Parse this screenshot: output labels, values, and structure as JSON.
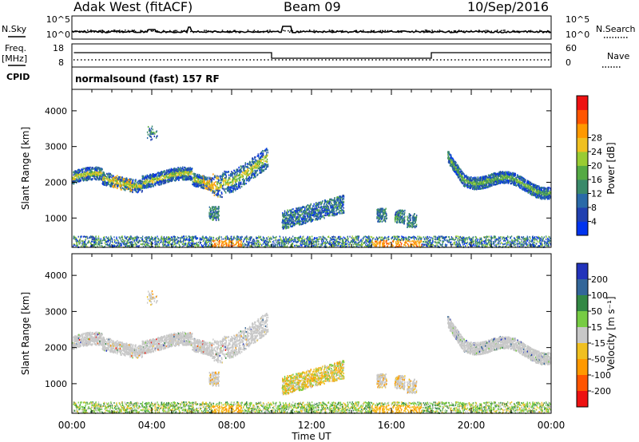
{
  "header": {
    "station": "Adak West (fitACF)",
    "beam": "Beam 09",
    "date": "10/Sep/2016"
  },
  "noise_panel": {
    "left_label": "N.Sky",
    "right_label": "N.Search",
    "y_ticks": [
      "10^5",
      "10^0"
    ]
  },
  "freq_panel": {
    "left_label_1": "Freq.",
    "left_label_2": "[MHz]",
    "left_ticks": [
      "18",
      "8"
    ],
    "right_label": "Nave",
    "right_ticks": [
      "60",
      "0"
    ],
    "cpid_label": "CPID",
    "cpid_text": "normalsound (fast) 157 RF"
  },
  "x_axis": {
    "label": "Time UT",
    "ticks": [
      "00:00",
      "04:00",
      "08:00",
      "12:00",
      "16:00",
      "20:00",
      "00:00"
    ]
  },
  "chart_data": [
    {
      "type": "heatmap",
      "panel": "power",
      "ylabel": "Slant Range [km]",
      "y_ticks": [
        "1000",
        "2000",
        "3000",
        "4000"
      ],
      "ylim": [
        180,
        4600
      ],
      "xlim_hours": [
        0,
        24
      ],
      "colorbar": {
        "label": "Power [dB]",
        "ticks": [
          "4",
          "8",
          "12",
          "16",
          "20",
          "24",
          "28"
        ],
        "colors": [
          "#0033ee",
          "#2040b0",
          "#2a6aa8",
          "#3a8a6a",
          "#55aa44",
          "#99cc33",
          "#f0c020",
          "#ff9900",
          "#ff5500",
          "#ee1111"
        ]
      },
      "echo_regions": [
        {
          "t_start": 0.0,
          "t_end": 9.8,
          "range_km": [
            1800,
            2900
          ],
          "level": "moderate to strong"
        },
        {
          "t_start": 10.5,
          "t_end": 13.5,
          "range_km": [
            800,
            1600
          ],
          "level": "weak to moderate"
        },
        {
          "t_start": 7.0,
          "t_end": 7.3,
          "range_km": [
            1000,
            1350
          ],
          "level": "moderate"
        },
        {
          "t_start": 15.0,
          "t_end": 17.3,
          "range_km": [
            900,
            1300
          ],
          "level": "weak"
        },
        {
          "t_start": 18.8,
          "t_end": 24.0,
          "range_km": [
            1700,
            2900
          ],
          "level": "moderate"
        },
        {
          "t_start": 0.0,
          "t_end": 24.0,
          "range_km": [
            180,
            480
          ],
          "level": "ground scatter near range, strong at 16:00 and 07:30"
        }
      ]
    },
    {
      "type": "heatmap",
      "panel": "velocity",
      "ylabel": "Slant Range [km]",
      "y_ticks": [
        "1000",
        "2000",
        "3000",
        "4000"
      ],
      "ylim": [
        180,
        4600
      ],
      "xlim_hours": [
        0,
        24
      ],
      "colorbar": {
        "label": "Velocity [m s⁻¹]",
        "ticks": [
          "200",
          "100",
          "50",
          "15",
          "-15",
          "-50",
          "-100",
          "-200"
        ],
        "colors": [
          "#2233bb",
          "#336699",
          "#338844",
          "#77cc44",
          "#c8c8c8",
          "#f0c020",
          "#ff9900",
          "#ff5500",
          "#ee1111"
        ]
      },
      "echo_regions": [
        {
          "t_start": 0.0,
          "t_end": 9.8,
          "range_km": [
            1800,
            2900
          ],
          "velocity": "near zero (grey)"
        },
        {
          "t_start": 10.5,
          "t_end": 13.5,
          "range_km": [
            800,
            1600
          ],
          "velocity": "negative -15 to -100"
        },
        {
          "t_start": 15.0,
          "t_end": 17.3,
          "range_km": [
            900,
            1300
          ],
          "velocity": "near zero and negative"
        },
        {
          "t_start": 18.8,
          "t_end": 24.0,
          "range_km": [
            1700,
            2900
          ],
          "velocity": "near zero (grey)"
        },
        {
          "t_start": 0.0,
          "t_end": 24.0,
          "range_km": [
            180,
            480
          ],
          "velocity": "mixed, negative near 08:00 and 16:00"
        }
      ]
    }
  ]
}
